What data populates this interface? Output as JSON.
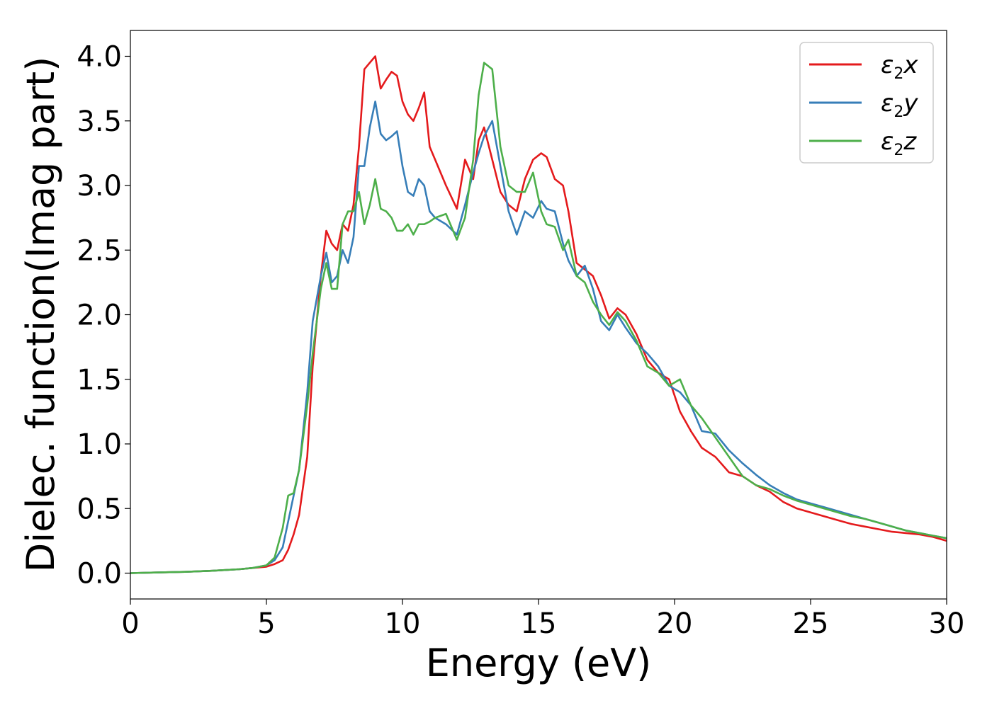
{
  "chart_data": {
    "type": "line",
    "xlabel": "Energy (eV)",
    "ylabel": "Dielec. function(Imag part)",
    "xlim": [
      0,
      30
    ],
    "ylim": [
      -0.2,
      4.2
    ],
    "xticks": [
      0,
      5,
      10,
      15,
      20,
      25,
      30
    ],
    "yticks": [
      "0.0",
      "0.5",
      "1.0",
      "1.5",
      "2.0",
      "2.5",
      "3.0",
      "3.5",
      "4.0"
    ],
    "grid": false,
    "legend_position": "top-right",
    "series": [
      {
        "name": "ε2x",
        "name_main": "ε",
        "name_sub": "2",
        "name_var": "x",
        "color": "#e41a1c",
        "x": [
          0,
          1,
          2,
          3,
          4,
          4.5,
          5,
          5.3,
          5.6,
          5.8,
          6.0,
          6.2,
          6.5,
          6.7,
          7.0,
          7.2,
          7.4,
          7.6,
          7.8,
          8.0,
          8.2,
          8.4,
          8.6,
          8.8,
          9.0,
          9.2,
          9.4,
          9.6,
          9.8,
          10.0,
          10.2,
          10.4,
          10.6,
          10.8,
          11.0,
          11.2,
          11.6,
          12.0,
          12.3,
          12.6,
          12.8,
          13.0,
          13.3,
          13.6,
          13.9,
          14.2,
          14.5,
          14.8,
          15.1,
          15.3,
          15.6,
          15.9,
          16.1,
          16.4,
          16.7,
          17.0,
          17.3,
          17.6,
          17.9,
          18.2,
          18.6,
          19.0,
          19.4,
          19.8,
          20.2,
          20.6,
          21.0,
          21.5,
          22.0,
          22.5,
          23.0,
          23.5,
          24.0,
          24.5,
          25.0,
          25.5,
          26.0,
          26.5,
          27.0,
          27.5,
          28.0,
          28.5,
          29.0,
          29.5,
          30.0
        ],
        "y": [
          0.0,
          0.005,
          0.01,
          0.018,
          0.03,
          0.04,
          0.05,
          0.07,
          0.1,
          0.18,
          0.3,
          0.45,
          0.9,
          1.6,
          2.3,
          2.65,
          2.55,
          2.5,
          2.7,
          2.65,
          2.85,
          3.3,
          3.9,
          3.95,
          4.0,
          3.75,
          3.82,
          3.88,
          3.85,
          3.65,
          3.55,
          3.5,
          3.6,
          3.72,
          3.3,
          3.2,
          3.0,
          2.82,
          3.2,
          3.05,
          3.35,
          3.45,
          3.2,
          2.95,
          2.85,
          2.8,
          3.05,
          3.2,
          3.25,
          3.22,
          3.05,
          3.0,
          2.8,
          2.4,
          2.35,
          2.3,
          2.15,
          1.97,
          2.05,
          2.0,
          1.85,
          1.65,
          1.55,
          1.5,
          1.25,
          1.1,
          0.97,
          0.9,
          0.78,
          0.75,
          0.68,
          0.63,
          0.55,
          0.5,
          0.47,
          0.44,
          0.41,
          0.38,
          0.36,
          0.34,
          0.32,
          0.31,
          0.3,
          0.28,
          0.25
        ]
      },
      {
        "name": "ε2y",
        "name_main": "ε",
        "name_sub": "2",
        "name_var": "y",
        "color": "#377eb8",
        "x": [
          0,
          1,
          2,
          3,
          4,
          4.5,
          5,
          5.3,
          5.6,
          5.8,
          6.0,
          6.2,
          6.5,
          6.7,
          7.0,
          7.2,
          7.4,
          7.6,
          7.8,
          8.0,
          8.2,
          8.4,
          8.6,
          8.8,
          9.0,
          9.2,
          9.4,
          9.6,
          9.8,
          10.0,
          10.2,
          10.4,
          10.6,
          10.8,
          11.0,
          11.2,
          11.6,
          12.0,
          12.3,
          12.6,
          12.8,
          13.0,
          13.3,
          13.6,
          13.9,
          14.2,
          14.5,
          14.8,
          15.1,
          15.3,
          15.6,
          15.9,
          16.1,
          16.4,
          16.7,
          17.0,
          17.3,
          17.6,
          17.9,
          18.2,
          18.6,
          19.0,
          19.4,
          19.8,
          20.2,
          20.6,
          21.0,
          21.5,
          22.0,
          22.5,
          23.0,
          23.5,
          24.0,
          24.5,
          25.0,
          25.5,
          26.0,
          26.5,
          27.0,
          27.5,
          28.0,
          28.5,
          29.0,
          29.5,
          30.0
        ],
        "y": [
          0.0,
          0.005,
          0.01,
          0.018,
          0.03,
          0.04,
          0.06,
          0.1,
          0.2,
          0.4,
          0.6,
          0.8,
          1.4,
          1.95,
          2.3,
          2.48,
          2.25,
          2.3,
          2.5,
          2.4,
          2.6,
          3.15,
          3.15,
          3.45,
          3.65,
          3.4,
          3.35,
          3.38,
          3.42,
          3.15,
          2.95,
          2.92,
          3.05,
          3.0,
          2.8,
          2.75,
          2.7,
          2.62,
          2.85,
          3.1,
          3.25,
          3.38,
          3.5,
          3.15,
          2.8,
          2.62,
          2.8,
          2.75,
          2.88,
          2.82,
          2.8,
          2.55,
          2.42,
          2.3,
          2.38,
          2.2,
          1.95,
          1.88,
          2.0,
          1.9,
          1.78,
          1.7,
          1.6,
          1.45,
          1.4,
          1.3,
          1.1,
          1.08,
          0.95,
          0.85,
          0.76,
          0.68,
          0.62,
          0.57,
          0.54,
          0.51,
          0.48,
          0.45,
          0.42,
          0.39,
          0.36,
          0.33,
          0.31,
          0.29,
          0.27
        ]
      },
      {
        "name": "ε2z",
        "name_main": "ε",
        "name_sub": "2",
        "name_var": "z",
        "color": "#4daf4a",
        "x": [
          0,
          1,
          2,
          3,
          4,
          4.5,
          5,
          5.3,
          5.6,
          5.8,
          6.0,
          6.2,
          6.5,
          6.7,
          7.0,
          7.2,
          7.4,
          7.6,
          7.8,
          8.0,
          8.2,
          8.4,
          8.6,
          8.8,
          9.0,
          9.2,
          9.4,
          9.6,
          9.8,
          10.0,
          10.2,
          10.4,
          10.6,
          10.8,
          11.0,
          11.2,
          11.6,
          12.0,
          12.3,
          12.6,
          12.8,
          13.0,
          13.3,
          13.6,
          13.9,
          14.2,
          14.5,
          14.8,
          15.1,
          15.3,
          15.6,
          15.9,
          16.1,
          16.4,
          16.7,
          17.0,
          17.3,
          17.6,
          17.9,
          18.2,
          18.6,
          19.0,
          19.4,
          19.8,
          20.2,
          20.6,
          21.0,
          21.5,
          22.0,
          22.5,
          23.0,
          23.5,
          24.0,
          24.5,
          25.0,
          25.5,
          26.0,
          26.5,
          27.0,
          27.5,
          28.0,
          28.5,
          29.0,
          29.5,
          30.0
        ],
        "y": [
          0.0,
          0.005,
          0.01,
          0.018,
          0.03,
          0.04,
          0.06,
          0.12,
          0.35,
          0.6,
          0.62,
          0.8,
          1.3,
          1.7,
          2.2,
          2.4,
          2.2,
          2.2,
          2.7,
          2.8,
          2.8,
          2.95,
          2.7,
          2.85,
          3.05,
          2.82,
          2.8,
          2.75,
          2.65,
          2.65,
          2.7,
          2.62,
          2.7,
          2.7,
          2.72,
          2.75,
          2.78,
          2.58,
          2.75,
          3.2,
          3.7,
          3.95,
          3.9,
          3.3,
          3.0,
          2.95,
          2.95,
          3.1,
          2.8,
          2.7,
          2.68,
          2.5,
          2.58,
          2.3,
          2.25,
          2.1,
          2.0,
          1.92,
          2.02,
          1.95,
          1.8,
          1.6,
          1.55,
          1.45,
          1.5,
          1.3,
          1.2,
          1.05,
          0.9,
          0.75,
          0.68,
          0.65,
          0.6,
          0.56,
          0.53,
          0.5,
          0.47,
          0.44,
          0.42,
          0.39,
          0.36,
          0.33,
          0.31,
          0.29,
          0.27
        ]
      }
    ]
  }
}
